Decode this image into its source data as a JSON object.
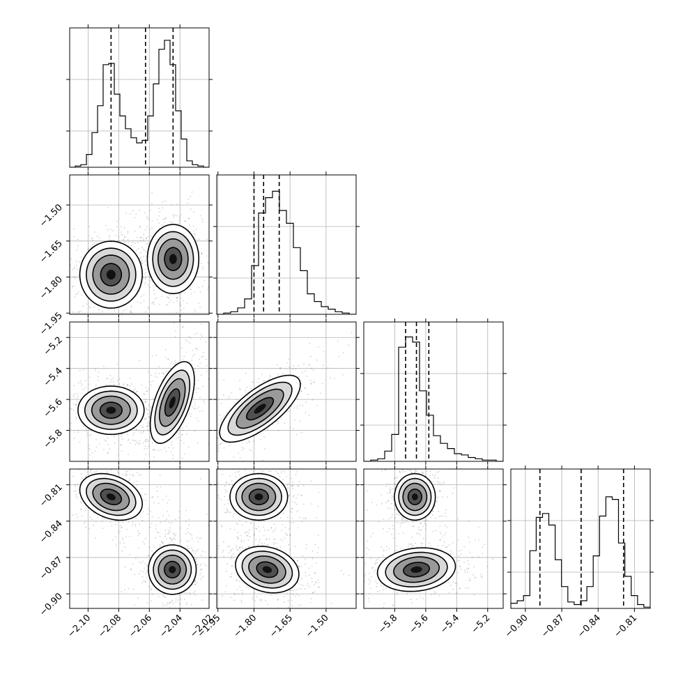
{
  "chart_data": {
    "type": "corner",
    "grid": true,
    "parameters": [
      {
        "index": 0,
        "range": [
          -2.112,
          -2.021
        ],
        "ticks": [
          -2.1,
          -2.08,
          -2.06,
          -2.04,
          -2.02
        ],
        "tick_labels": [
          "−2.10",
          "−2.08",
          "−2.06",
          "−2.04",
          "−2.02"
        ]
      },
      {
        "index": 1,
        "range": [
          -1.955,
          -1.375
        ],
        "ticks": [
          -1.95,
          -1.8,
          -1.65,
          -1.5
        ],
        "tick_labels": [
          "−1.95",
          "−1.80",
          "−1.65",
          "−1.50"
        ]
      },
      {
        "index": 2,
        "range": [
          -6.0,
          -5.1
        ],
        "ticks": [
          -5.8,
          -5.6,
          -5.4,
          -5.2
        ],
        "tick_labels": [
          "−5.8",
          "−5.6",
          "−5.4",
          "−5.2"
        ]
      },
      {
        "index": 3,
        "range": [
          -0.912,
          -0.797
        ],
        "ticks": [
          -0.9,
          -0.87,
          -0.84,
          -0.81
        ],
        "tick_labels": [
          "−0.90",
          "−0.87",
          "−0.84",
          "−0.81"
        ]
      }
    ],
    "quantiles": [
      [
        -2.085,
        -2.0625,
        -2.0445
      ],
      [
        -1.8,
        -1.76,
        -1.695
      ],
      [
        -5.73,
        -5.66,
        -5.58
      ],
      [
        -0.888,
        -0.854,
        -0.819
      ]
    ],
    "histograms": [
      {
        "counts": [
          0.0,
          0.01,
          0.02,
          0.1,
          0.27,
          0.48,
          0.8,
          0.81,
          0.57,
          0.4,
          0.3,
          0.23,
          0.19,
          0.21,
          0.4,
          0.65,
          0.92,
          0.99,
          0.8,
          0.44,
          0.22,
          0.05,
          0.02,
          0.01,
          0.0
        ],
        "max": 1.0
      },
      {
        "counts": [
          0.0,
          0.01,
          0.02,
          0.05,
          0.12,
          0.38,
          0.79,
          0.91,
          0.96,
          0.81,
          0.71,
          0.52,
          0.34,
          0.16,
          0.1,
          0.06,
          0.04,
          0.02,
          0.01,
          0.0
        ],
        "max": 1.0
      },
      {
        "counts": [
          0.0,
          0.01,
          0.02,
          0.08,
          0.21,
          0.89,
          0.97,
          0.93,
          0.55,
          0.36,
          0.2,
          0.14,
          0.1,
          0.06,
          0.05,
          0.03,
          0.02,
          0.01,
          0.01,
          0.0
        ],
        "max": 1.0
      },
      {
        "counts": [
          0.04,
          0.06,
          0.1,
          0.45,
          0.71,
          0.74,
          0.65,
          0.38,
          0.17,
          0.05,
          0.03,
          0.06,
          0.17,
          0.41,
          0.72,
          0.87,
          0.85,
          0.51,
          0.25,
          0.1,
          0.03,
          0.01
        ],
        "max": 1.0
      }
    ],
    "joint_modes": [
      {
        "x": 1,
        "y": 0,
        "blobs": [
          {
            "cx": -2.085,
            "cy": -1.79,
            "sx": 0.0085,
            "sy": 0.058,
            "rho": 0.0,
            "w": 1.0
          },
          {
            "cx": -2.0445,
            "cy": -1.725,
            "sx": 0.007,
            "sy": 0.06,
            "rho": 0.0,
            "w": 1.0
          }
        ]
      },
      {
        "x": 2,
        "y": 0,
        "blobs": [
          {
            "cx": -2.085,
            "cy": -5.67,
            "sx": 0.009,
            "sy": 0.065,
            "rho": 0.0,
            "w": 1.0
          },
          {
            "cx": -2.045,
            "cy": -5.62,
            "sx": 0.006,
            "sy": 0.11,
            "rho": 0.55,
            "w": 1.0
          }
        ]
      },
      {
        "x": 2,
        "y": 1,
        "blobs": [
          {
            "cx": -1.775,
            "cy": -5.66,
            "sx": 0.07,
            "sy": 0.09,
            "rho": 0.72,
            "w": 1.0
          }
        ]
      },
      {
        "x": 3,
        "y": 0,
        "blobs": [
          {
            "cx": -2.085,
            "cy": -0.82,
            "sx": 0.0085,
            "sy": 0.008,
            "rho": -0.3,
            "w": 1.0
          },
          {
            "cx": -2.045,
            "cy": -0.88,
            "sx": 0.0065,
            "sy": 0.0085,
            "rho": 0.0,
            "w": 1.0
          }
        ]
      },
      {
        "x": 3,
        "y": 1,
        "blobs": [
          {
            "cx": -1.78,
            "cy": -0.82,
            "sx": 0.05,
            "sy": 0.008,
            "rho": 0.0,
            "w": 1.0
          },
          {
            "cx": -1.745,
            "cy": -0.88,
            "sx": 0.055,
            "sy": 0.008,
            "rho": -0.2,
            "w": 1.0
          }
        ]
      },
      {
        "x": 3,
        "y": 2,
        "blobs": [
          {
            "cx": -5.67,
            "cy": -0.82,
            "sx": 0.055,
            "sy": 0.008,
            "rho": 0.0,
            "w": 1.0
          },
          {
            "cx": -5.66,
            "cy": -0.88,
            "sx": 0.105,
            "sy": 0.0075,
            "rho": 0.15,
            "w": 1.0
          }
        ]
      }
    ]
  }
}
